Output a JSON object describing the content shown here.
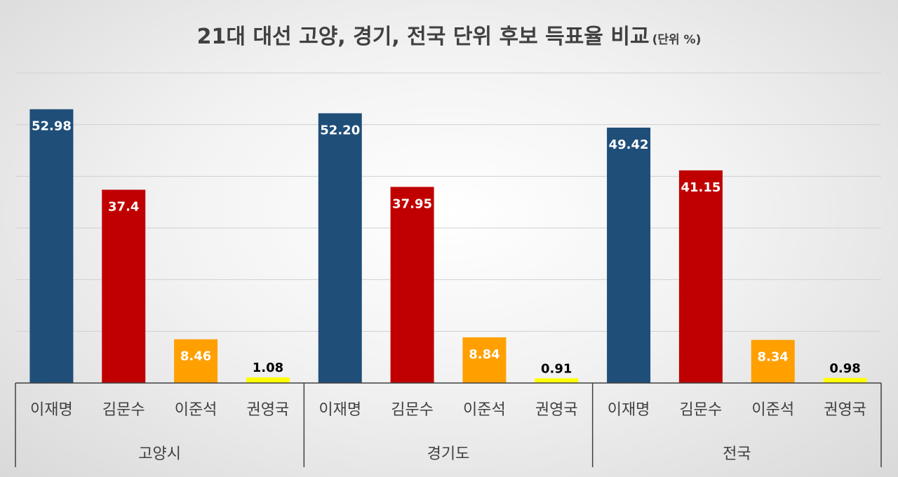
{
  "chart_data": {
    "type": "bar",
    "title": "21대 대선 고양, 경기, 전국 단위 후보 득표율 비교",
    "unit_label": "(단위 %)",
    "groups": [
      {
        "name": "고양시",
        "categories": [
          "이재명",
          "김문수",
          "이준석",
          "권영국"
        ],
        "values": [
          52.98,
          37.4,
          8.46,
          1.08
        ],
        "labels": [
          "52.98",
          "37.4",
          "8.46",
          "1.08"
        ]
      },
      {
        "name": "경기도",
        "categories": [
          "이재명",
          "김문수",
          "이준석",
          "권영국"
        ],
        "values": [
          52.2,
          37.95,
          8.84,
          0.91
        ],
        "labels": [
          "52.20",
          "37.95",
          "8.84",
          "0.91"
        ]
      },
      {
        "name": "전국",
        "categories": [
          "이재명",
          "김문수",
          "이준석",
          "권영국"
        ],
        "values": [
          49.42,
          41.15,
          8.34,
          0.98
        ],
        "labels": [
          "49.42",
          "41.15",
          "8.34",
          "0.98"
        ]
      }
    ],
    "bar_colors": [
      "#1f4e79",
      "#c00000",
      "#ffa000",
      "#ffff00"
    ],
    "label_colors": [
      "#ffffff",
      "#ffffff",
      "#ffffff",
      "#000000"
    ],
    "ylim": [
      0,
      60
    ],
    "grid": true,
    "legend": "none"
  }
}
